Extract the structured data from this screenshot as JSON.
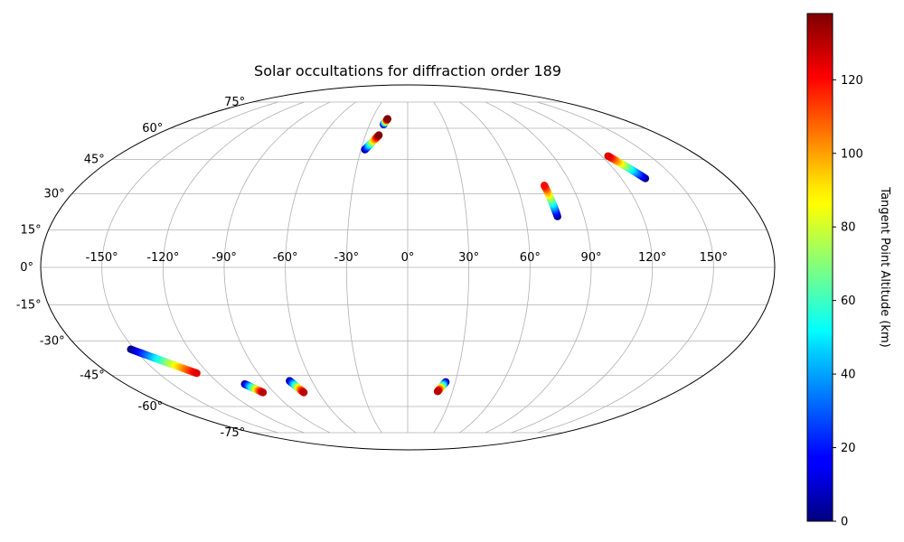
{
  "chart_data": {
    "type": "scatter",
    "projection": "mollweide",
    "title": "Solar occultations for diffraction order 189",
    "grid": true,
    "longitude_ticks": [
      -150,
      -120,
      -90,
      -60,
      -30,
      0,
      30,
      60,
      90,
      120,
      150
    ],
    "longitude_tick_labels": [
      "-150°",
      "-120°",
      "-90°",
      "-60°",
      "-30°",
      "0°",
      "30°",
      "60°",
      "90°",
      "120°",
      "150°"
    ],
    "latitude_ticks": [
      -75,
      -60,
      -45,
      -30,
      -15,
      0,
      15,
      30,
      45,
      60,
      75
    ],
    "latitude_tick_labels": [
      "-75°",
      "-60°",
      "-45°",
      "-30°",
      "-15°",
      "0°",
      "15°",
      "30°",
      "45°",
      "60°",
      "75°"
    ],
    "colorbar": {
      "label": "Tangent Point Altitude (km)",
      "colormap": "jet",
      "range": [
        0,
        138
      ],
      "ticks": [
        0,
        20,
        40,
        60,
        80,
        100,
        120
      ],
      "tick_labels": [
        "0",
        "20",
        "40",
        "60",
        "80",
        "100",
        "120"
      ]
    },
    "series": [
      {
        "lon_range": [
          -27.5,
          -20.5
        ],
        "lat_range": [
          49.5,
          56.5
        ],
        "alt_range": [
          0,
          138
        ]
      },
      {
        "lon_range": [
          -19.0,
          -17.0
        ],
        "lat_range": [
          62.0,
          65.0
        ],
        "alt_range": [
          0,
          138
        ]
      },
      {
        "lon_range": [
          76.5,
          75.0
        ],
        "lat_range": [
          20.5,
          33.5
        ],
        "alt_range": [
          0,
          120
        ]
      },
      {
        "lon_range": [
          133.5,
          124.0
        ],
        "lat_range": [
          36.5,
          46.5
        ],
        "alt_range": [
          0,
          125
        ]
      },
      {
        "lon_range": [
          -152.0,
          -127.0
        ],
        "lat_range": [
          -33.5,
          -44.0
        ],
        "alt_range": [
          0,
          125
        ]
      },
      {
        "lon_range": [
          -104.0,
          -97.5
        ],
        "lat_range": [
          -49.0,
          -53.0
        ],
        "alt_range": [
          0,
          130
        ]
      },
      {
        "lon_range": [
          -74.0,
          -70.0
        ],
        "lat_range": [
          -47.5,
          -53.0
        ],
        "alt_range": [
          0,
          130
        ]
      },
      {
        "lon_range": [
          24.0,
          20.0
        ],
        "lat_range": [
          -48.0,
          -52.5
        ],
        "alt_range": [
          0,
          130
        ]
      }
    ]
  }
}
